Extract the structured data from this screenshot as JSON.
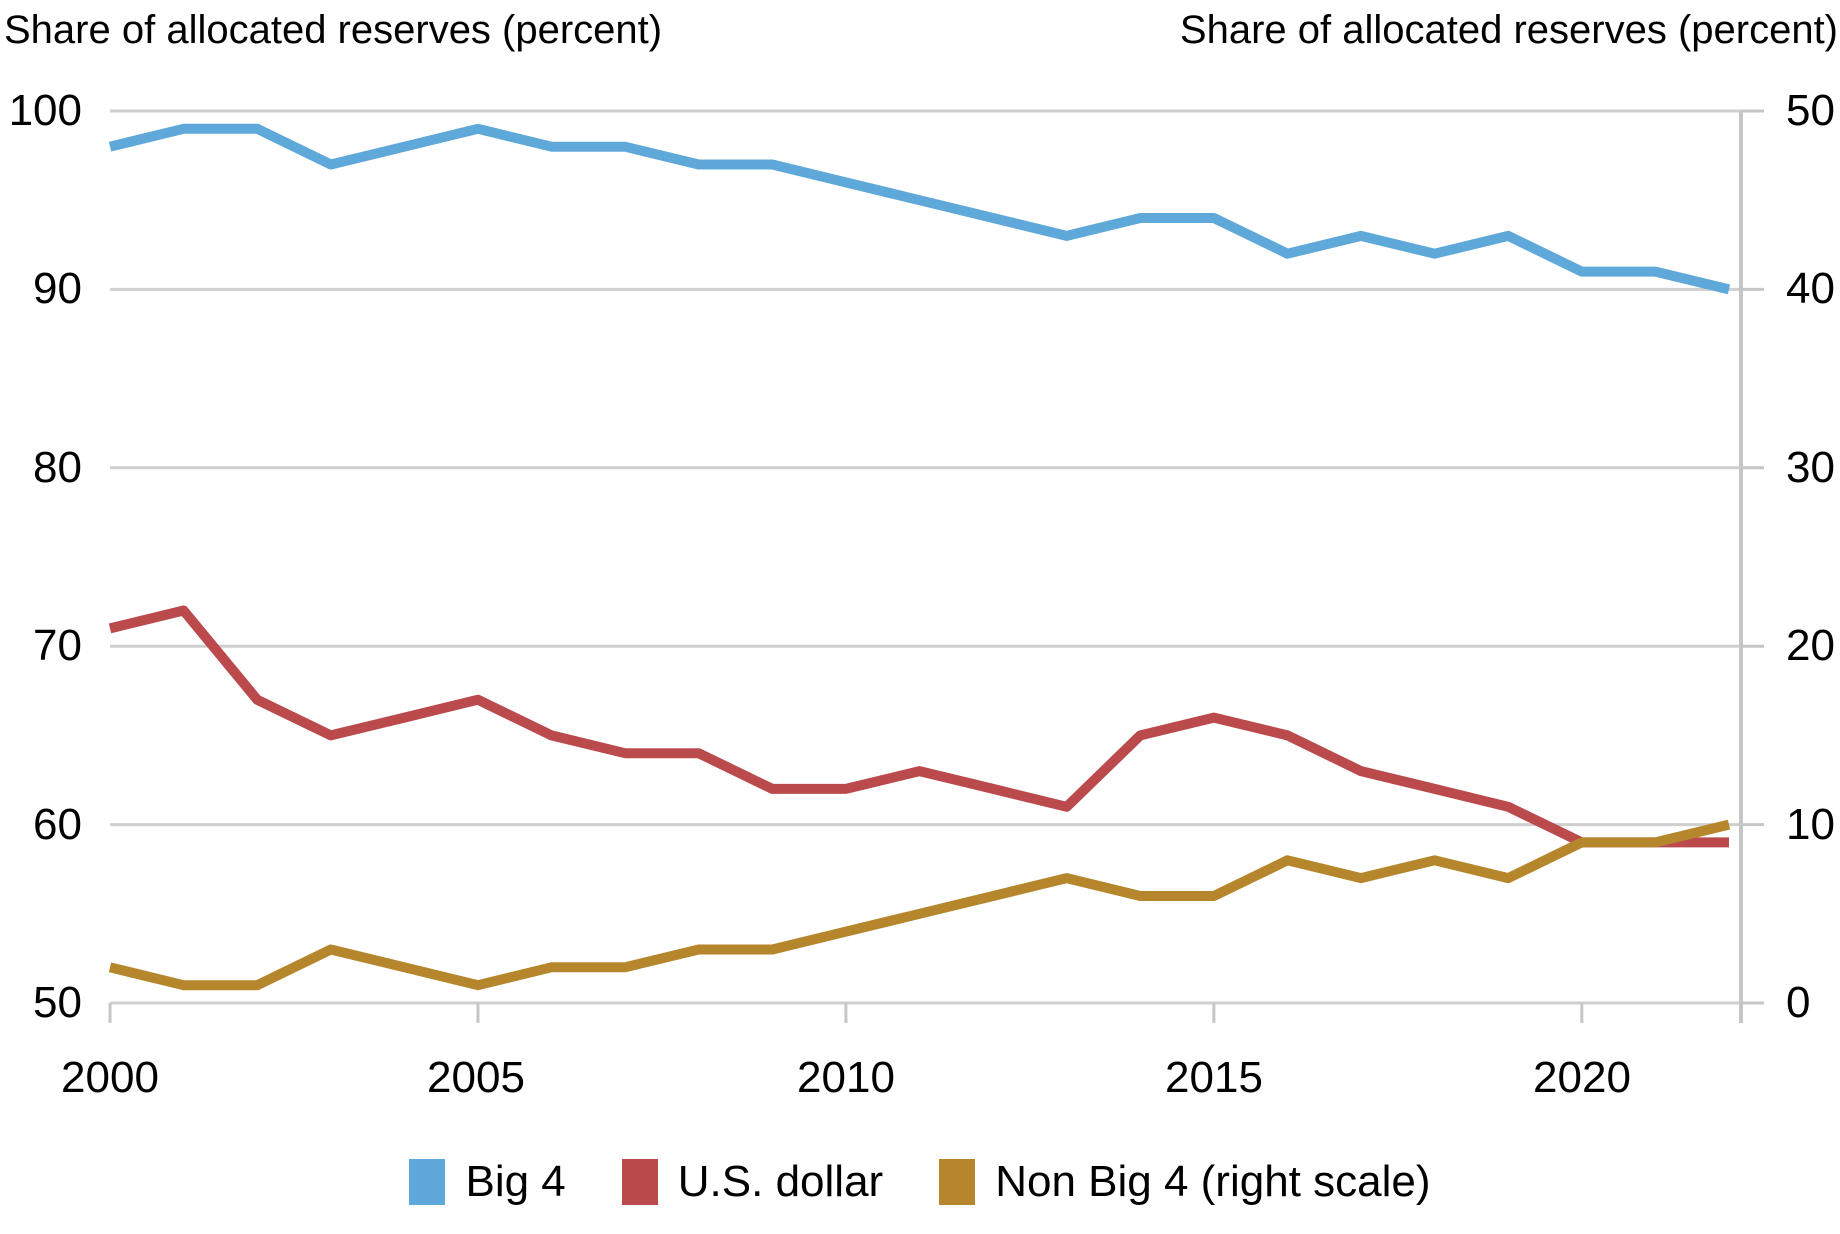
{
  "titles": {
    "left": "Share of allocated reserves (percent)",
    "right": "Share of allocated reserves (percent)"
  },
  "axes": {
    "left_ticks": [
      "100",
      "90",
      "80",
      "70",
      "60",
      "50"
    ],
    "right_ticks": [
      "50",
      "40",
      "30",
      "20",
      "10",
      "0"
    ],
    "x_ticks": [
      "2000",
      "2005",
      "2010",
      "2015",
      "2020"
    ]
  },
  "legend": [
    {
      "label": "Big 4",
      "color": "#5fa8da"
    },
    {
      "label": "U.S. dollar",
      "color": "#bb4a4d"
    },
    {
      "label": "Non Big 4 (right scale)",
      "color": "#b6862c"
    }
  ],
  "colors": {
    "grid": "#cfcfcf",
    "axis": "#c6c6c6",
    "background": "#ffffff",
    "text": "#000000"
  },
  "chart_data": {
    "type": "line",
    "title_left": "Share of allocated reserves (percent)",
    "title_right": "Share of allocated reserves (percent)",
    "x": [
      2000,
      2001,
      2002,
      2003,
      2004,
      2005,
      2006,
      2007,
      2008,
      2009,
      2010,
      2011,
      2012,
      2013,
      2014,
      2015,
      2016,
      2017,
      2018,
      2019,
      2020,
      2021,
      2022
    ],
    "series": [
      {
        "name": "Big 4",
        "axis": "left",
        "color": "#5fa8da",
        "values": [
          98,
          99,
          99,
          97,
          98,
          99,
          98,
          98,
          97,
          97,
          96,
          95,
          94,
          93,
          94,
          94,
          92,
          93,
          92,
          93,
          91,
          91,
          90
        ]
      },
      {
        "name": "U.S. dollar",
        "axis": "left",
        "color": "#bb4a4d",
        "values": [
          71,
          72,
          67,
          65,
          66,
          67,
          65,
          64,
          64,
          62,
          62,
          63,
          62,
          61,
          65,
          66,
          65,
          63,
          62,
          61,
          59,
          59,
          59
        ]
      },
      {
        "name": "Non Big 4 (right scale)",
        "axis": "right",
        "color": "#b6862c",
        "values": [
          2,
          1,
          1,
          3,
          2,
          1,
          2,
          2,
          3,
          3,
          4,
          5,
          6,
          7,
          6,
          6,
          8,
          7,
          8,
          7,
          9,
          9,
          10
        ]
      }
    ],
    "left_axis": {
      "min": 50,
      "max": 100,
      "tick_step": 10,
      "ticks": [
        100,
        90,
        80,
        70,
        60,
        50
      ]
    },
    "right_axis": {
      "min": 0,
      "max": 50,
      "tick_step": 10,
      "ticks": [
        50,
        40,
        30,
        20,
        10,
        0
      ]
    },
    "x_axis": {
      "min": 2000,
      "max": 2022,
      "labeled_ticks": [
        2000,
        2005,
        2010,
        2015,
        2020
      ]
    },
    "grid": true,
    "legend_position": "bottom"
  }
}
